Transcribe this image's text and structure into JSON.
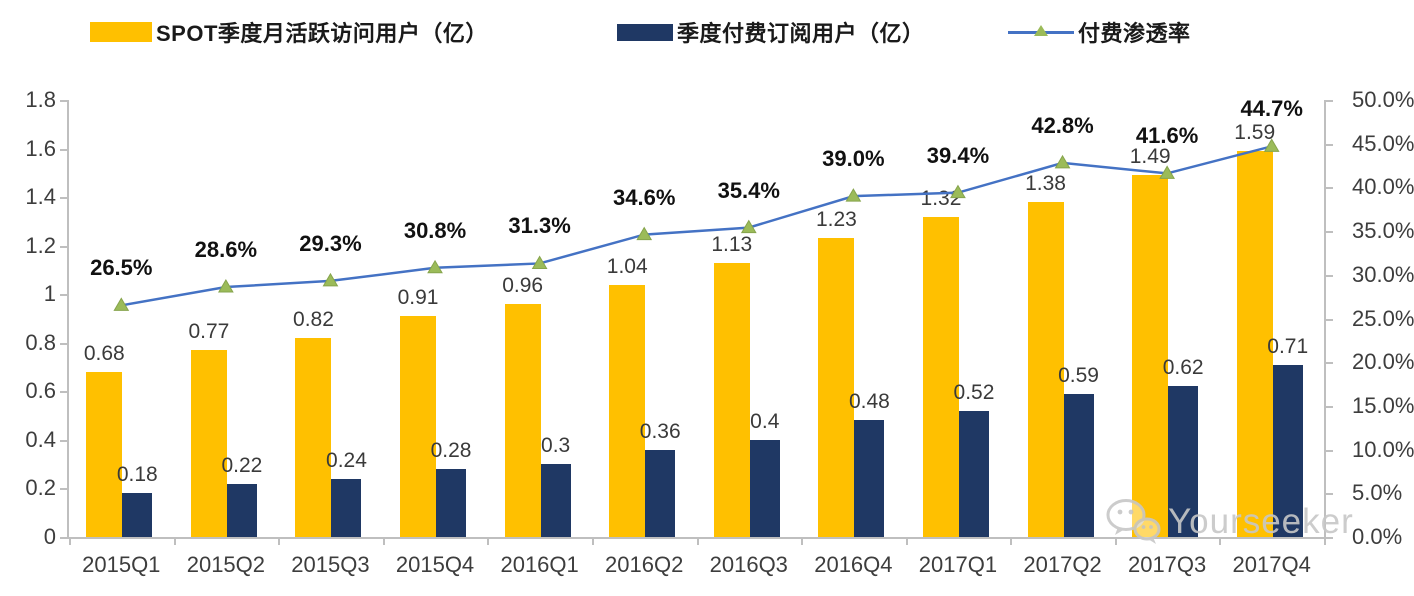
{
  "legend": {
    "items": [
      {
        "label": "SPOT季度月活跃访问用户（亿）",
        "color": "#FFC000",
        "type": "bar"
      },
      {
        "label": "季度付费订阅用户（亿）",
        "color": "#1F3864",
        "type": "bar"
      },
      {
        "label": "付费渗透率",
        "color": "#4472C4",
        "marker_color": "#9BBB59",
        "type": "line"
      }
    ]
  },
  "chart_data": {
    "type": "bar",
    "title": "",
    "categories": [
      "2015Q1",
      "2015Q2",
      "2015Q3",
      "2015Q4",
      "2016Q1",
      "2016Q2",
      "2016Q3",
      "2016Q4",
      "2017Q1",
      "2017Q2",
      "2017Q3",
      "2017Q4"
    ],
    "series": [
      {
        "name": "SPOT季度月活跃访问用户（亿）",
        "type": "bar",
        "axis": "left",
        "color": "#FFC000",
        "values": [
          0.68,
          0.77,
          0.82,
          0.91,
          0.96,
          1.04,
          1.13,
          1.23,
          1.32,
          1.38,
          1.49,
          1.59
        ],
        "labels": [
          "0.68",
          "0.77",
          "0.82",
          "0.91",
          "0.96",
          "1.04",
          "1.13",
          "1.23",
          "1.32",
          "1.38",
          "1.49",
          "1.59"
        ]
      },
      {
        "name": "季度付费订阅用户（亿）",
        "type": "bar",
        "axis": "left",
        "color": "#1F3864",
        "values": [
          0.18,
          0.22,
          0.24,
          0.28,
          0.3,
          0.36,
          0.4,
          0.48,
          0.52,
          0.59,
          0.62,
          0.71
        ],
        "labels": [
          "0.18",
          "0.22",
          "0.24",
          "0.28",
          "0.3",
          "0.36",
          "0.4",
          "0.48",
          "0.52",
          "0.59",
          "0.62",
          "0.71"
        ]
      },
      {
        "name": "付费渗透率",
        "type": "line",
        "axis": "right",
        "color": "#4472C4",
        "marker": "triangle-up",
        "marker_color": "#9BBB59",
        "values": [
          26.5,
          28.6,
          29.3,
          30.8,
          31.3,
          34.6,
          35.4,
          39.0,
          39.4,
          42.8,
          41.6,
          44.7
        ],
        "labels": [
          "26.5%",
          "28.6%",
          "29.3%",
          "30.8%",
          "31.3%",
          "34.6%",
          "35.4%",
          "39.0%",
          "39.4%",
          "42.8%",
          "41.6%",
          "44.7%"
        ]
      }
    ],
    "left_axis": {
      "min": 0,
      "max": 1.8,
      "tick_values": [
        1.8,
        1.6,
        1.4,
        1.2,
        1,
        0.8,
        0.6,
        0.4,
        0.2,
        0
      ],
      "tick_labels": [
        "1.8",
        "1.6",
        "1.4",
        "1.2",
        "1",
        "0.8",
        "0.6",
        "0.4",
        "0.2",
        "0"
      ]
    },
    "right_axis": {
      "min": 0,
      "max": 50,
      "tick_values": [
        50,
        45,
        40,
        35,
        30,
        25,
        20,
        15,
        10,
        5,
        0
      ],
      "tick_labels": [
        "50.0%",
        "45.0%",
        "40.0%",
        "35.0%",
        "30.0%",
        "25.0%",
        "20.0%",
        "15.0%",
        "10.0%",
        "5.0%",
        "0.0%"
      ]
    },
    "grid": false,
    "legend_position": "top"
  },
  "watermark": {
    "text": "Yourseeker",
    "icon": "wechat-icon"
  }
}
